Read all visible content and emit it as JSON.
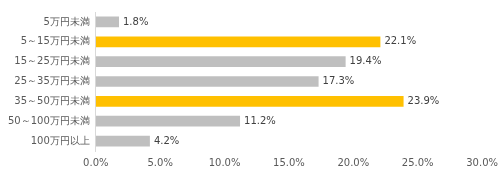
{
  "chart_data": {
    "type": "bar",
    "orientation": "horizontal",
    "categories": [
      "5万円未満",
      "5～15万円未満",
      "15～25万円未満",
      "25～35万円未満",
      "35～50万円未満",
      "50～100万円未満",
      "100万円以上"
    ],
    "values": [
      1.8,
      22.1,
      19.4,
      17.3,
      23.9,
      11.2,
      4.2
    ],
    "value_labels": [
      "1.8%",
      "22.1%",
      "19.4%",
      "17.3%",
      "23.9%",
      "11.2%",
      "4.2%"
    ],
    "colors": [
      "#bfbfbf",
      "#ffc000",
      "#bfbfbf",
      "#bfbfbf",
      "#ffc000",
      "#bfbfbf",
      "#bfbfbf"
    ],
    "xlim": [
      0,
      30
    ],
    "xticks": [
      {
        "value": 0,
        "label": "0.0%"
      },
      {
        "value": 5,
        "label": "5.0%"
      },
      {
        "value": 10,
        "label": "10.0%"
      },
      {
        "value": 15,
        "label": "15.0%"
      },
      {
        "value": 20,
        "label": "20.0%"
      },
      {
        "value": 25,
        "label": "25.0%"
      },
      {
        "value": 30,
        "label": "30.0%"
      }
    ],
    "grid": false,
    "data_labels": true
  }
}
